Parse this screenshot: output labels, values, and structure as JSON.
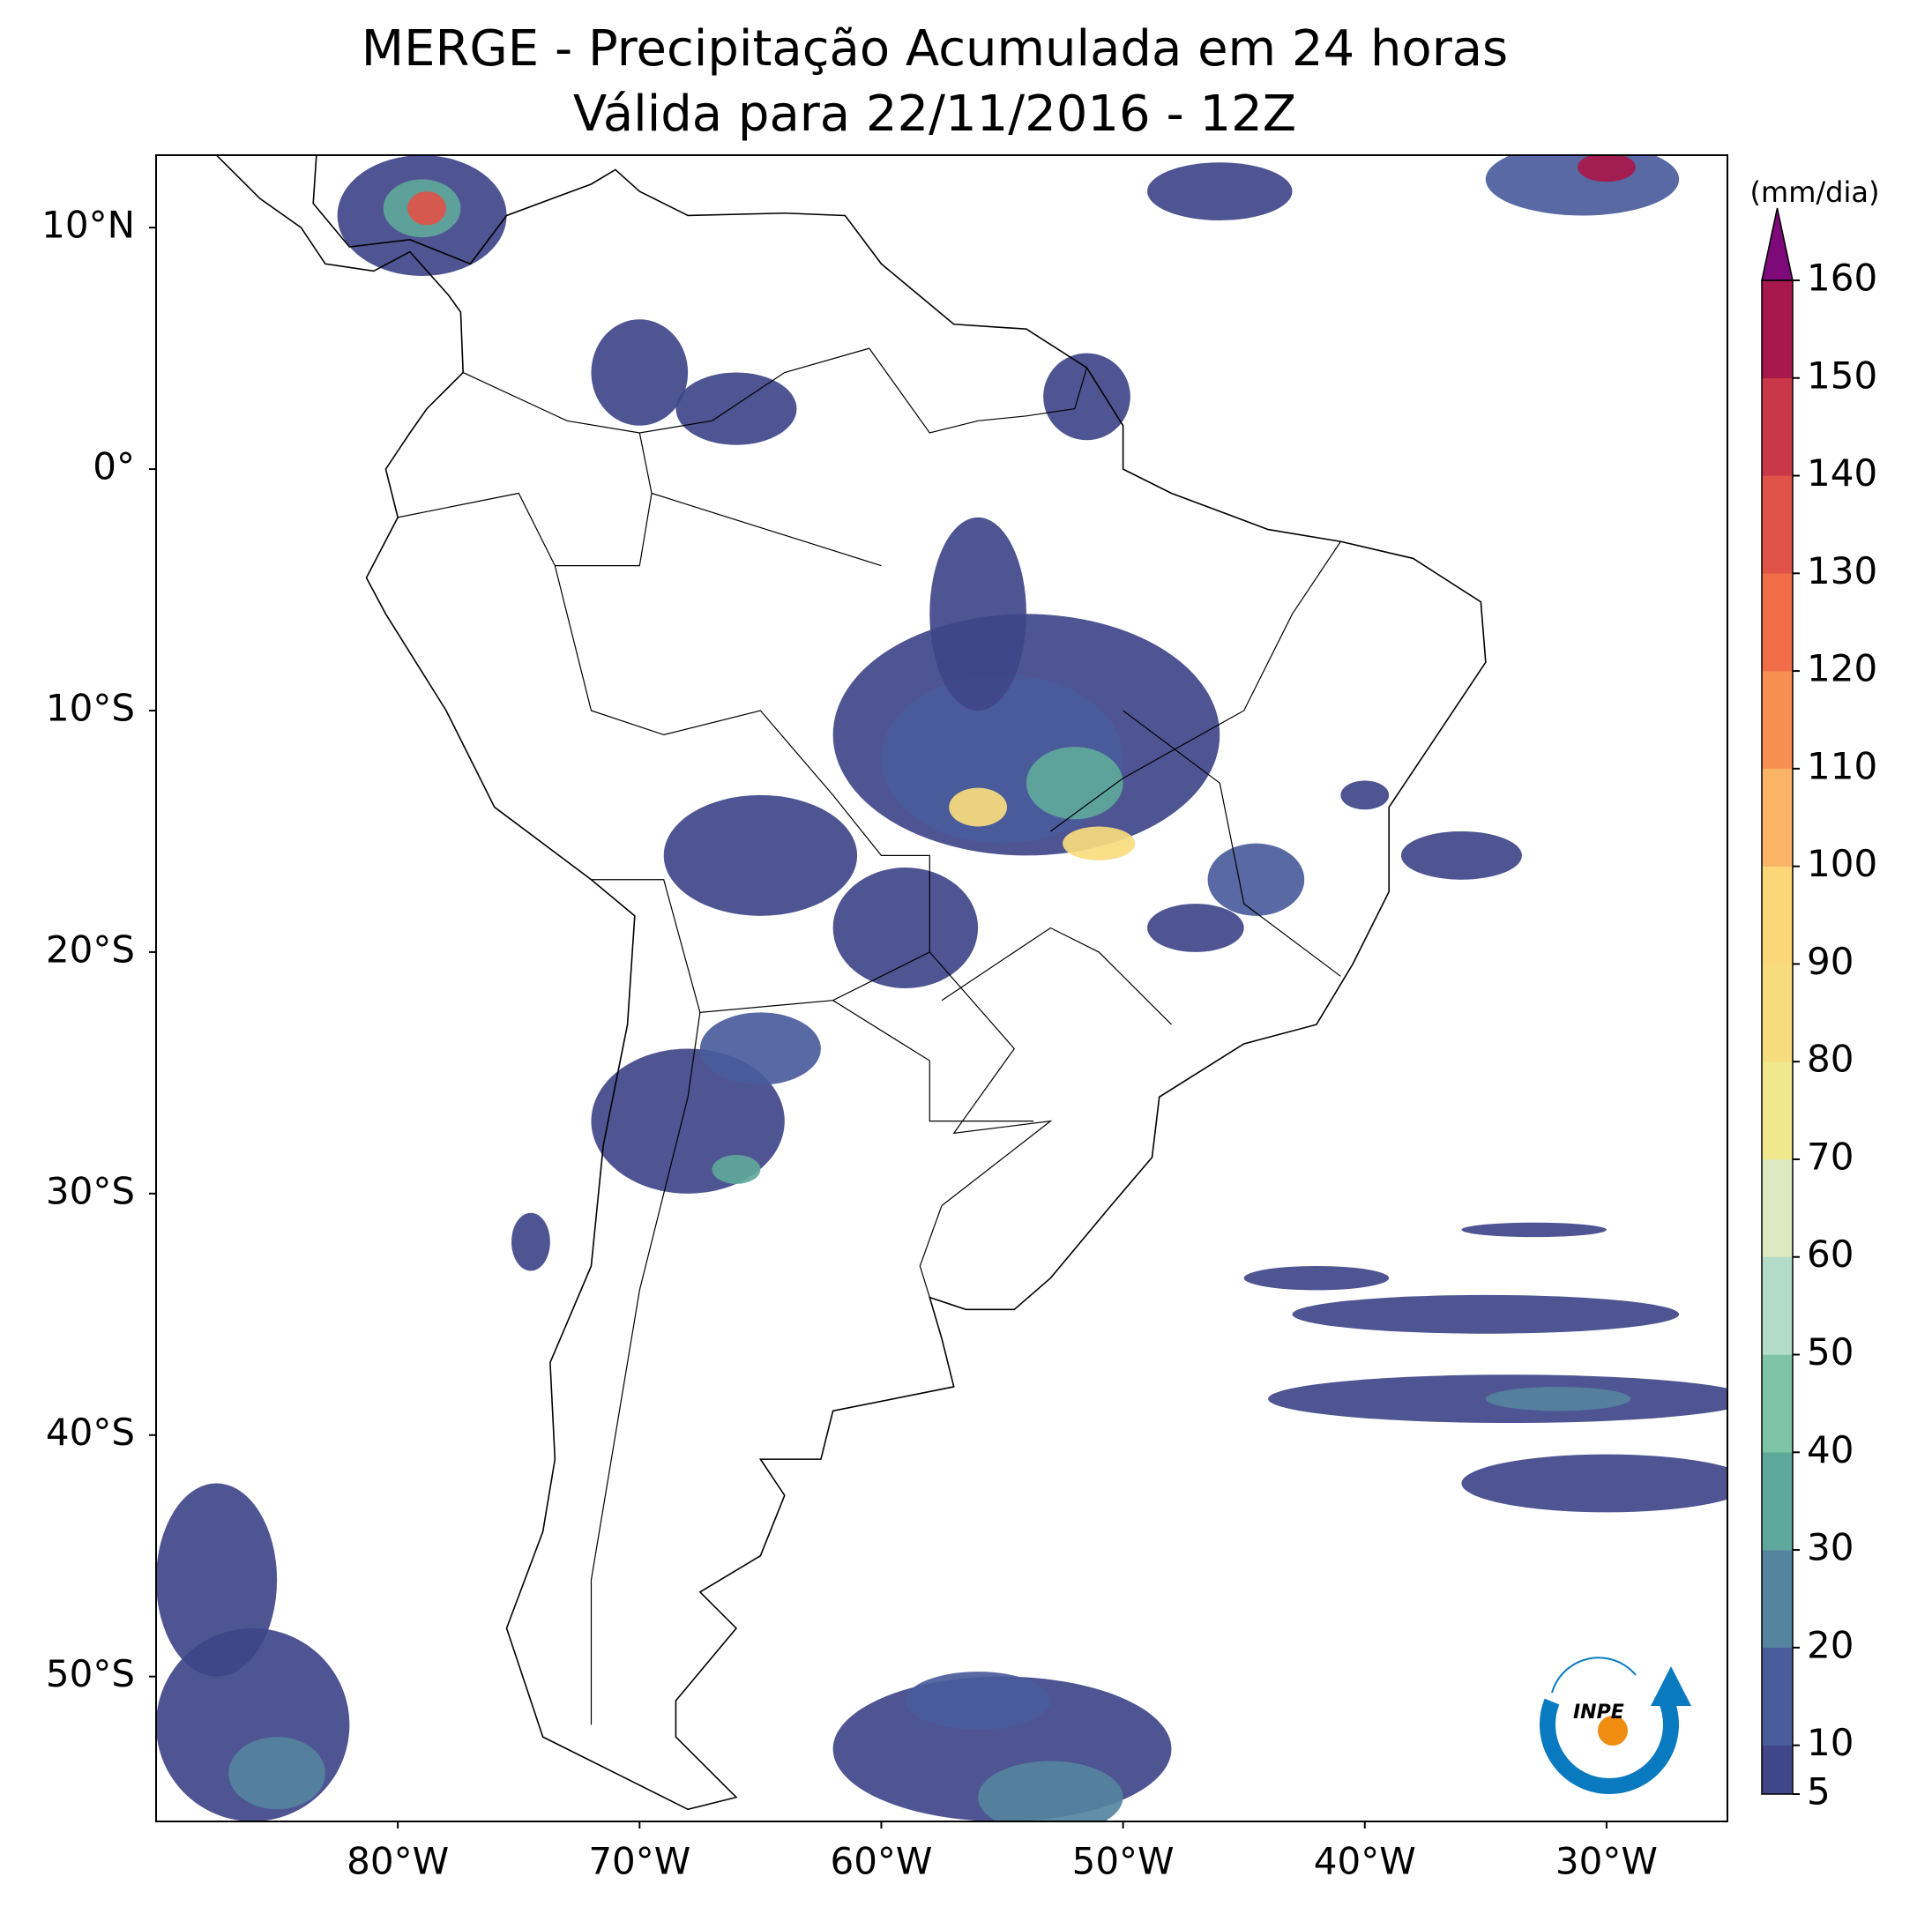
{
  "title": [
    "MERGE - Precipitação Acumulada em 24 horas",
    "Válida para 22/11/2016 - 12Z"
  ],
  "map": {
    "xlim": [
      -90,
      -25
    ],
    "ylim": [
      -56,
      13
    ],
    "xticks": [
      {
        "value": -80,
        "label": "80°W"
      },
      {
        "value": -70,
        "label": "70°W"
      },
      {
        "value": -60,
        "label": "60°W"
      },
      {
        "value": -50,
        "label": "50°W"
      },
      {
        "value": -40,
        "label": "40°W"
      },
      {
        "value": -30,
        "label": "30°W"
      }
    ],
    "yticks": [
      {
        "value": 10,
        "label": "10°N"
      },
      {
        "value": 0,
        "label": "0°"
      },
      {
        "value": -10,
        "label": "10°S"
      },
      {
        "value": -20,
        "label": "20°S"
      },
      {
        "value": -30,
        "label": "30°S"
      },
      {
        "value": -40,
        "label": "40°S"
      },
      {
        "value": -50,
        "label": "50°S"
      }
    ]
  },
  "colorbar": {
    "label": "(mm/dia)",
    "lim": [
      5,
      160
    ],
    "ticks": [
      5,
      10,
      20,
      30,
      40,
      50,
      60,
      70,
      80,
      90,
      100,
      110,
      120,
      130,
      140,
      150,
      160
    ],
    "colors": [
      "#3f4689",
      "#4a5c9c",
      "#55849f",
      "#5fa89c",
      "#7fc4a4",
      "#b3dcc9",
      "#dde9c0",
      "#efe88c",
      "#f7dc7e",
      "#fbd77a",
      "#fbb466",
      "#f88f52",
      "#f06d48",
      "#df5349",
      "#c93848",
      "#a8184a"
    ],
    "extend_color": "#7d0a78"
  },
  "logo": "INPE"
}
